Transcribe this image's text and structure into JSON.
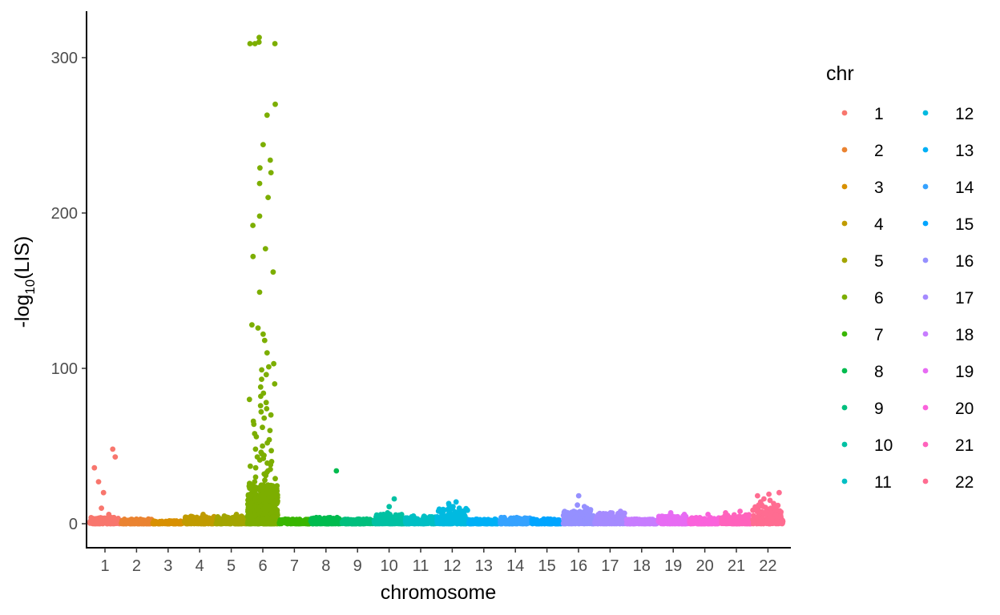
{
  "chart_data": {
    "type": "scatter",
    "title": "",
    "xlabel": "chromosome",
    "ylabel_prefix": "-log",
    "ylabel_subscript": "10",
    "ylabel_suffix": "(LIS)",
    "ylim": [
      -15,
      325
    ],
    "yticks": [
      0,
      100,
      200,
      300
    ],
    "grid": false,
    "legend": {
      "title": "chr",
      "placement": "right",
      "columns": 2
    },
    "categories": [
      "1",
      "2",
      "3",
      "4",
      "5",
      "6",
      "7",
      "8",
      "9",
      "10",
      "11",
      "12",
      "13",
      "14",
      "15",
      "16",
      "17",
      "18",
      "19",
      "20",
      "21",
      "22"
    ],
    "colors": [
      "#F8766D",
      "#EA8331",
      "#D89000",
      "#C09B00",
      "#A3A500",
      "#7CAE00",
      "#39B600",
      "#00BB4E",
      "#00BF7D",
      "#00C1A3",
      "#00BFC4",
      "#00BAE0",
      "#00B0F6",
      "#35A2FF",
      "#00A5FF",
      "#9590FF",
      "#A58AFF",
      "#C77CFF",
      "#E76BF3",
      "#FA62DB",
      "#FF62BC",
      "#FF6C91"
    ],
    "baseline_max": [
      4,
      3,
      2,
      5,
      5,
      25,
      3,
      4,
      3,
      6,
      5,
      10,
      3,
      4,
      3,
      8,
      7,
      3,
      5,
      4,
      6,
      12
    ],
    "peaks": [
      {
        "chr": "1",
        "values": [
          43,
          48,
          36,
          27,
          20,
          10,
          6
        ]
      },
      {
        "chr": "4",
        "values": [
          6
        ]
      },
      {
        "chr": "5",
        "values": [
          6
        ]
      },
      {
        "chr": "6",
        "values": [
          313,
          310,
          309,
          309,
          309,
          270,
          263,
          244,
          234,
          229,
          226,
          219,
          210,
          198,
          192,
          177,
          172,
          162,
          149,
          128,
          126,
          122,
          118,
          110,
          103,
          101,
          99,
          96,
          93,
          90,
          88,
          84,
          82,
          80,
          78,
          76,
          74,
          72,
          70,
          68,
          66,
          64,
          62,
          60,
          58,
          56,
          54,
          52,
          50,
          48,
          47,
          46,
          45,
          44,
          43,
          42,
          41,
          40,
          39,
          38,
          37,
          36,
          35,
          34,
          33,
          32,
          31,
          30,
          29,
          28,
          27,
          26
        ]
      },
      {
        "chr": "8",
        "values": [
          34
        ]
      },
      {
        "chr": "10",
        "values": [
          16,
          11,
          7,
          6
        ]
      },
      {
        "chr": "12",
        "values": [
          14,
          13,
          12,
          11,
          10,
          9
        ]
      },
      {
        "chr": "16",
        "values": [
          18,
          12,
          11,
          10,
          9,
          8
        ]
      },
      {
        "chr": "17",
        "values": [
          8,
          7
        ]
      },
      {
        "chr": "19",
        "values": [
          7,
          6
        ]
      },
      {
        "chr": "20",
        "values": [
          6
        ]
      },
      {
        "chr": "21",
        "values": [
          8,
          7
        ]
      },
      {
        "chr": "22",
        "values": [
          20,
          19,
          18,
          16,
          15,
          14,
          13,
          12,
          11,
          10
        ]
      }
    ]
  }
}
